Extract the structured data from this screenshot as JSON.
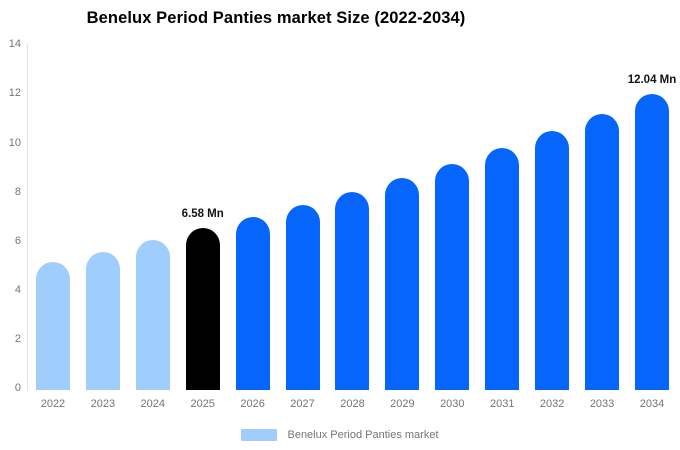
{
  "title": "Benelux Period Panties market Size (2022-2034)",
  "chart_data": {
    "type": "bar",
    "title": "Benelux Period Panties market Size (2022-2034)",
    "xlabel": "",
    "ylabel": "",
    "ylim": [
      0,
      14
    ],
    "yticks": [
      0,
      2,
      4,
      6,
      8,
      10,
      12,
      14
    ],
    "grid": false,
    "categories": [
      "2022",
      "2023",
      "2024",
      "2025",
      "2026",
      "2027",
      "2028",
      "2029",
      "2030",
      "2031",
      "2032",
      "2033",
      "2034"
    ],
    "values": [
      5.22,
      5.64,
      6.09,
      6.58,
      7.04,
      7.53,
      8.06,
      8.62,
      9.22,
      9.86,
      10.55,
      11.26,
      12.04
    ],
    "bar_roles": [
      "historical",
      "historical",
      "historical",
      "current",
      "forecast",
      "forecast",
      "forecast",
      "forecast",
      "forecast",
      "forecast",
      "forecast",
      "forecast",
      "forecast"
    ],
    "palette": {
      "historical": "#a0cefc",
      "current": "#000000",
      "forecast": "#0666fc"
    },
    "annotations": [
      {
        "category": "2025",
        "text": "6.58 Mn"
      },
      {
        "category": "2034",
        "text": "12.04 Mn"
      }
    ],
    "legend": {
      "position": "bottom",
      "label": "Benelux Period Panties market",
      "swatch_color": "#a0cefc"
    }
  }
}
